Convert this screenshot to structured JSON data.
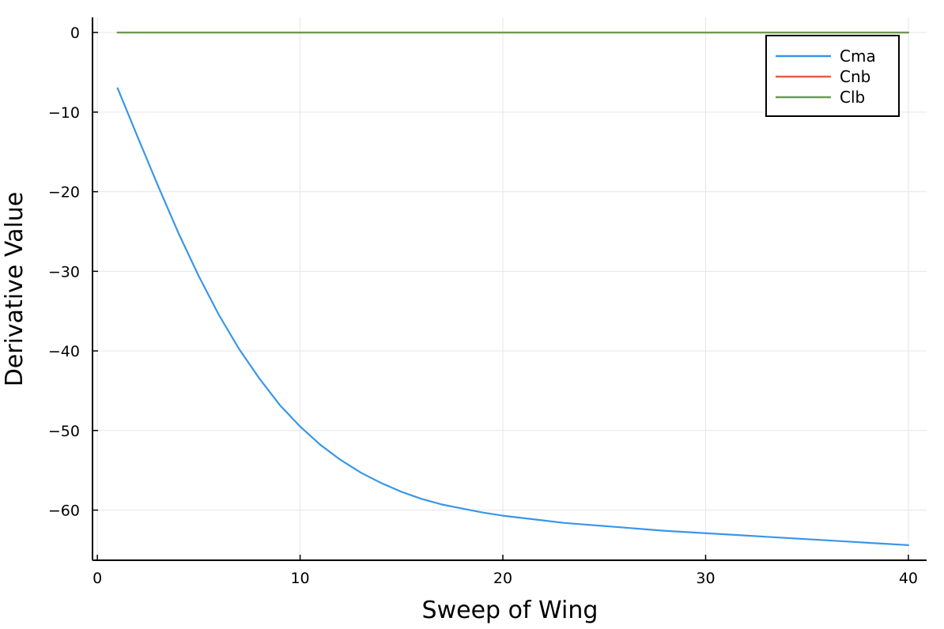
{
  "chart_data": {
    "type": "line",
    "title": "",
    "xlabel": "Sweep of Wing",
    "ylabel": "Derivative Value",
    "xlim": [
      -0.2,
      40.9
    ],
    "ylim": [
      -66.2,
      1.9
    ],
    "xticks": [
      0,
      10,
      20,
      30,
      40
    ],
    "xtick_labels": [
      "0",
      "10",
      "20",
      "30",
      "40"
    ],
    "yticks": [
      0,
      -10,
      -20,
      -30,
      -40,
      -50,
      -60
    ],
    "ytick_labels": [
      "0",
      "−10",
      "−20",
      "−30",
      "−40",
      "−50",
      "−60"
    ],
    "grid": true,
    "legend_position": "top-right",
    "x": [
      1,
      2,
      3,
      4,
      5,
      6,
      7,
      8,
      9,
      10,
      11,
      12,
      13,
      14,
      15,
      16,
      17,
      18,
      19,
      20,
      21,
      22,
      23,
      24,
      25,
      26,
      27,
      28,
      29,
      30,
      31,
      32,
      33,
      34,
      35,
      36,
      37,
      38,
      39,
      40
    ],
    "series": [
      {
        "name": "Cma",
        "color": "#3a96e8",
        "values": [
          -7.0,
          -13.2,
          -19.3,
          -25.2,
          -30.6,
          -35.5,
          -39.8,
          -43.5,
          -46.8,
          -49.5,
          -51.8,
          -53.7,
          -55.3,
          -56.6,
          -57.7,
          -58.6,
          -59.3,
          -59.8,
          -60.3,
          -60.7,
          -61.0,
          -61.3,
          -61.6,
          -61.8,
          -62.0,
          -62.2,
          -62.4,
          -62.6,
          -62.75,
          -62.9,
          -63.05,
          -63.2,
          -63.35,
          -63.5,
          -63.65,
          -63.8,
          -63.95,
          -64.1,
          -64.25,
          -64.4
        ]
      },
      {
        "name": "Cnb",
        "color": "#e1613a",
        "values": [
          0,
          0,
          0,
          0,
          0,
          0,
          0,
          0,
          0,
          0,
          0,
          0,
          0,
          0,
          0,
          0,
          0,
          0,
          0,
          0,
          0,
          0,
          0,
          0,
          0,
          0,
          0,
          0,
          0,
          0,
          0,
          0,
          0,
          0,
          0,
          0,
          0,
          0,
          0,
          0
        ]
      },
      {
        "name": "Clb",
        "color": "#6b9c53",
        "values": [
          0,
          0,
          0,
          0,
          0,
          0,
          0,
          0,
          0,
          0,
          0,
          0,
          0,
          0,
          0,
          0,
          0,
          0,
          0,
          0,
          0,
          0,
          0,
          0,
          0,
          0,
          0,
          0,
          0,
          0,
          0,
          0,
          0,
          0,
          0,
          0,
          0,
          0,
          0,
          0
        ]
      }
    ]
  }
}
